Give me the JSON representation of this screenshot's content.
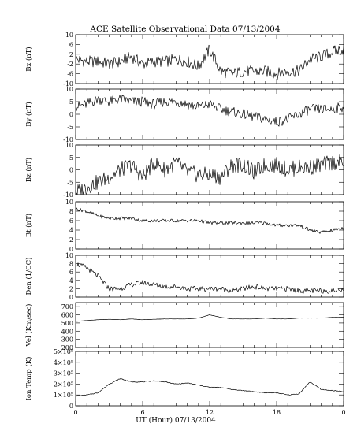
{
  "figure": {
    "title": "ACE Satellite Observational Data   07/13/2004",
    "xlabel": "UT (Hour)   07/13/2004"
  },
  "chart_data": {
    "type": "line",
    "title": "ACE Satellite Observational Data   07/13/2004",
    "xlabel": "UT (Hour)   07/13/2004",
    "x_tick_labels": [
      "0",
      "6",
      "12",
      "18",
      "0"
    ],
    "xlim": [
      0,
      24
    ],
    "x": [
      0,
      1,
      2,
      3,
      4,
      5,
      6,
      7,
      8,
      9,
      10,
      11,
      12,
      13,
      14,
      15,
      16,
      17,
      18,
      19,
      20,
      21,
      22,
      23,
      24
    ],
    "grid": false,
    "panels": [
      {
        "ylabel": "Bx (nT)",
        "ylim": [
          -10,
          10
        ],
        "yticks": [
          "10",
          "6",
          "2",
          "-2",
          "-6",
          "-10"
        ],
        "ytick_values": [
          10,
          6,
          2,
          -2,
          -6,
          -10
        ],
        "values": [
          0,
          -1,
          -1,
          -2,
          -1,
          1,
          -2,
          -1,
          -1,
          0,
          -1,
          -3,
          4,
          -5,
          -6,
          -5,
          -5,
          -5,
          -6,
          -5,
          -5,
          0,
          1,
          3,
          4
        ]
      },
      {
        "ylabel": "By (nT)",
        "ylim": [
          -10,
          10
        ],
        "yticks": [
          "10",
          "5",
          "0",
          "-5",
          "-10"
        ],
        "ytick_values": [
          10,
          5,
          0,
          -5,
          -10
        ],
        "values": [
          3,
          4,
          6,
          5,
          6,
          5,
          5,
          4,
          5,
          5,
          4,
          3,
          4,
          2,
          1,
          0,
          -1,
          -2,
          -3,
          -2,
          0,
          2,
          2,
          2,
          3
        ]
      },
      {
        "ylabel": "Bz (nT)",
        "ylim": [
          -10,
          10
        ],
        "yticks": [
          "10",
          "5",
          "0",
          "-5",
          "-10"
        ],
        "ytick_values": [
          10,
          5,
          0,
          -5,
          -10
        ],
        "values": [
          -9,
          -7,
          -5,
          -3,
          0,
          2,
          -3,
          3,
          0,
          3,
          -1,
          -2,
          -2,
          -3,
          2,
          2,
          -1,
          2,
          2,
          0,
          1,
          1,
          2,
          3,
          3
        ]
      },
      {
        "ylabel": "Bt (nT)",
        "ylim": [
          0,
          10
        ],
        "yticks": [
          "10",
          "8",
          "6",
          "4",
          "2",
          "0"
        ],
        "ytick_values": [
          10,
          8,
          6,
          4,
          2,
          0
        ],
        "values": [
          8.5,
          8,
          7,
          6.5,
          6.5,
          6.5,
          6,
          6,
          6,
          6,
          6,
          6,
          5.5,
          5.5,
          5.5,
          5.5,
          5.5,
          5.5,
          5,
          5,
          5,
          4,
          3.5,
          4,
          4.5
        ]
      },
      {
        "ylabel": "Den (1/CC)",
        "ylim": [
          0,
          10
        ],
        "yticks": [
          "10",
          "8",
          "6",
          "4",
          "2",
          "0"
        ],
        "ytick_values": [
          10,
          8,
          6,
          4,
          2,
          0
        ],
        "values": [
          8,
          7,
          5,
          2,
          2,
          3,
          3.5,
          3,
          2.5,
          2.5,
          2,
          2,
          2,
          2,
          1.5,
          2,
          2.5,
          2,
          2,
          2,
          1.5,
          1.5,
          1.5,
          1.5,
          2
        ]
      },
      {
        "ylabel": "Vel (Km/sec)",
        "ylim": [
          200,
          750
        ],
        "yticks": [
          "700",
          "600",
          "500",
          "400",
          "300",
          "200"
        ],
        "ytick_values": [
          700,
          600,
          500,
          400,
          300,
          200
        ],
        "values": [
          520,
          530,
          540,
          545,
          540,
          550,
          540,
          545,
          550,
          550,
          550,
          560,
          600,
          570,
          550,
          550,
          550,
          560,
          550,
          550,
          560,
          560,
          560,
          570,
          570
        ]
      },
      {
        "ylabel": "Ion Temp (K)",
        "ylim": [
          0,
          500000
        ],
        "yticks": [
          "5×10⁵",
          "4×10⁵",
          "3×10⁵",
          "2×10⁵",
          "1×10⁵",
          "0"
        ],
        "ytick_values": [
          500000,
          400000,
          300000,
          200000,
          100000,
          0
        ],
        "values": [
          90000,
          100000,
          120000,
          200000,
          250000,
          220000,
          220000,
          230000,
          220000,
          200000,
          210000,
          190000,
          170000,
          170000,
          150000,
          140000,
          130000,
          120000,
          120000,
          100000,
          110000,
          220000,
          150000,
          140000,
          130000
        ]
      }
    ]
  }
}
